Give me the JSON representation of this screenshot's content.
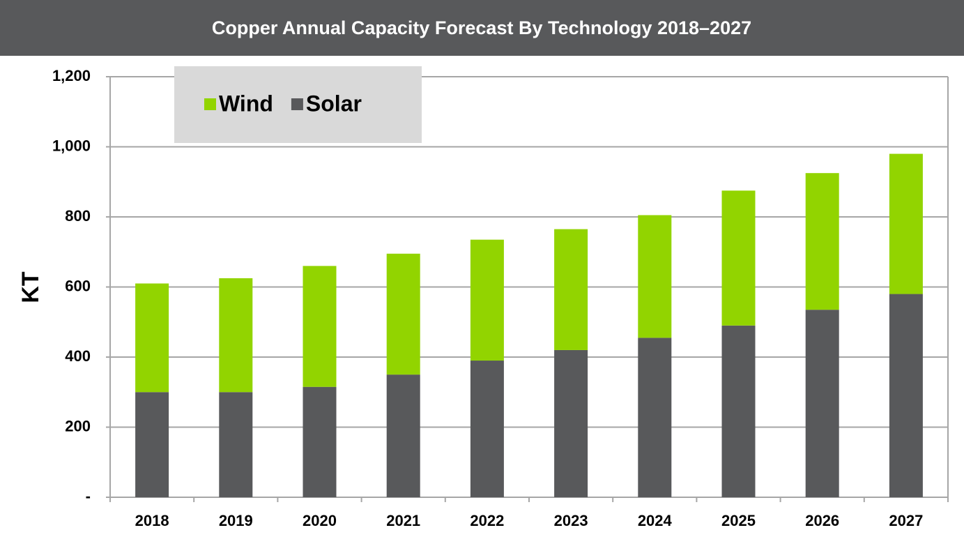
{
  "chart_data": {
    "type": "stacked_bar",
    "title": "Copper  Annual Capacity Forecast By Technology 2018–2027",
    "y_label": "KT",
    "categories": [
      "2018",
      "2019",
      "2020",
      "2021",
      "2022",
      "2023",
      "2024",
      "2025",
      "2026",
      "2027"
    ],
    "series": [
      {
        "name": "Wind",
        "color": "#92d400",
        "values": [
          310,
          325,
          345,
          345,
          345,
          345,
          350,
          385,
          390,
          400
        ]
      },
      {
        "name": "Solar",
        "color": "#58595b",
        "values": [
          300,
          300,
          315,
          350,
          390,
          420,
          455,
          490,
          535,
          580
        ]
      }
    ],
    "ylim": [
      0,
      1200
    ],
    "yticks": [
      {
        "value": 0,
        "label": "-"
      },
      200,
      400,
      600,
      800,
      {
        "value": 1000,
        "label": "1,000"
      },
      {
        "value": 1200,
        "label": "1,200"
      }
    ],
    "grid": true,
    "legend": "top-left"
  }
}
